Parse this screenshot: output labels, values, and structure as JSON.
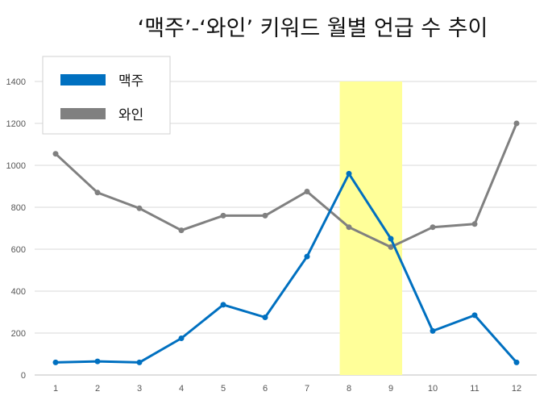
{
  "chart_data": {
    "type": "line",
    "title": "‘맥주’-‘와인’ 키워드 월별 언급 수 추이",
    "xlabel": "",
    "ylabel": "",
    "categories": [
      "1",
      "2",
      "3",
      "4",
      "5",
      "6",
      "7",
      "8",
      "9",
      "10",
      "11",
      "12"
    ],
    "ylim": [
      0,
      1400
    ],
    "yticks": [
      0,
      200,
      400,
      600,
      800,
      1000,
      1200,
      1400
    ],
    "grid": true,
    "legend_position": "top-left",
    "highlight": {
      "from": "8",
      "to": "9",
      "color": "#FFFF99"
    },
    "series": [
      {
        "name": "맥주",
        "color": "#0070C0",
        "values": [
          60,
          65,
          60,
          175,
          335,
          275,
          565,
          960,
          650,
          210,
          285,
          60
        ]
      },
      {
        "name": "와인",
        "color": "#808080",
        "values": [
          1055,
          870,
          795,
          690,
          760,
          760,
          875,
          705,
          610,
          705,
          720,
          1200
        ]
      }
    ]
  }
}
